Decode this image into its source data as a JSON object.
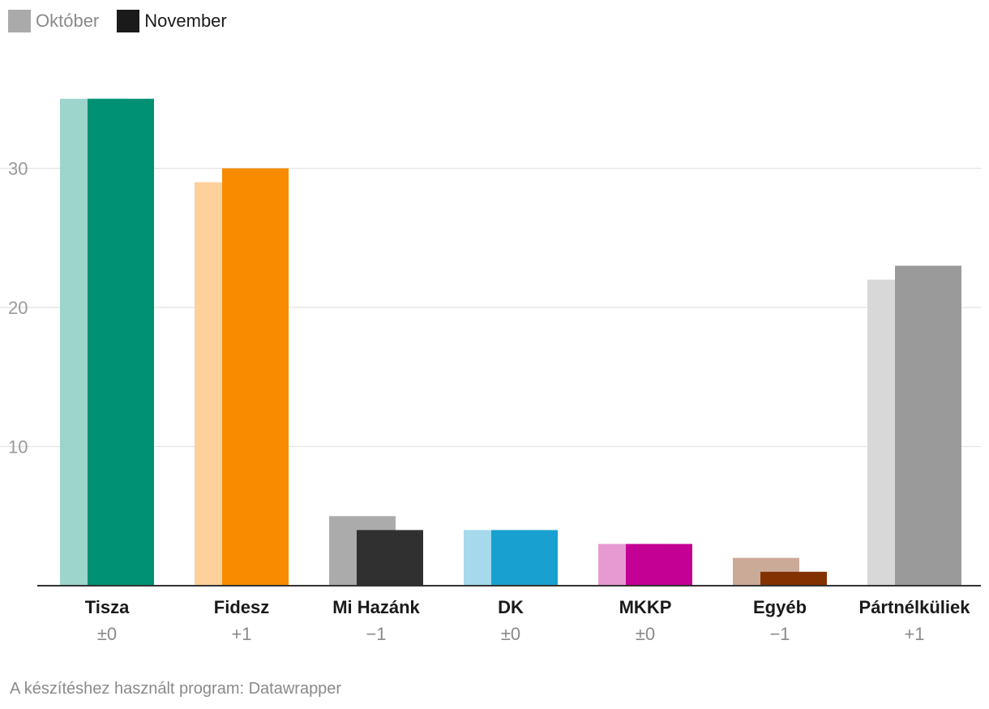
{
  "legend": {
    "items": [
      {
        "label": "Október",
        "color": "#aaaaaa",
        "text_color": "#8a8a8a"
      },
      {
        "label": "November",
        "color": "#1a1a1a",
        "text_color": "#1a1a1a"
      }
    ]
  },
  "chart_data": {
    "type": "bar",
    "title": "",
    "xlabel": "",
    "ylabel": "",
    "ylim": [
      0,
      37
    ],
    "yticks": [
      10,
      20,
      30
    ],
    "grid": true,
    "legend_position": "top-left",
    "categories": [
      "Tisza",
      "Fidesz",
      "Mi Hazánk",
      "DK",
      "MKKP",
      "Egyéb",
      "Pártnélküliek"
    ],
    "changes": [
      "±0",
      "+1",
      "−1",
      "±0",
      "±0",
      "−1",
      "+1"
    ],
    "series": [
      {
        "name": "Október",
        "values": [
          35,
          29,
          5,
          4,
          3,
          2,
          22
        ],
        "colors": [
          "#9dd4cb",
          "#fdd09c",
          "#ababab",
          "#a5d9eb",
          "#e79ad2",
          "#ccaa98",
          "#d8d8d8"
        ]
      },
      {
        "name": "November",
        "values": [
          35,
          30,
          4,
          4,
          3,
          1,
          23
        ],
        "colors": [
          "#009175",
          "#f88b00",
          "#303030",
          "#18a1d0",
          "#c20093",
          "#843100",
          "#9a9a9a"
        ]
      }
    ]
  },
  "footer": {
    "credit": "A készítéshez használt program: Datawrapper"
  }
}
